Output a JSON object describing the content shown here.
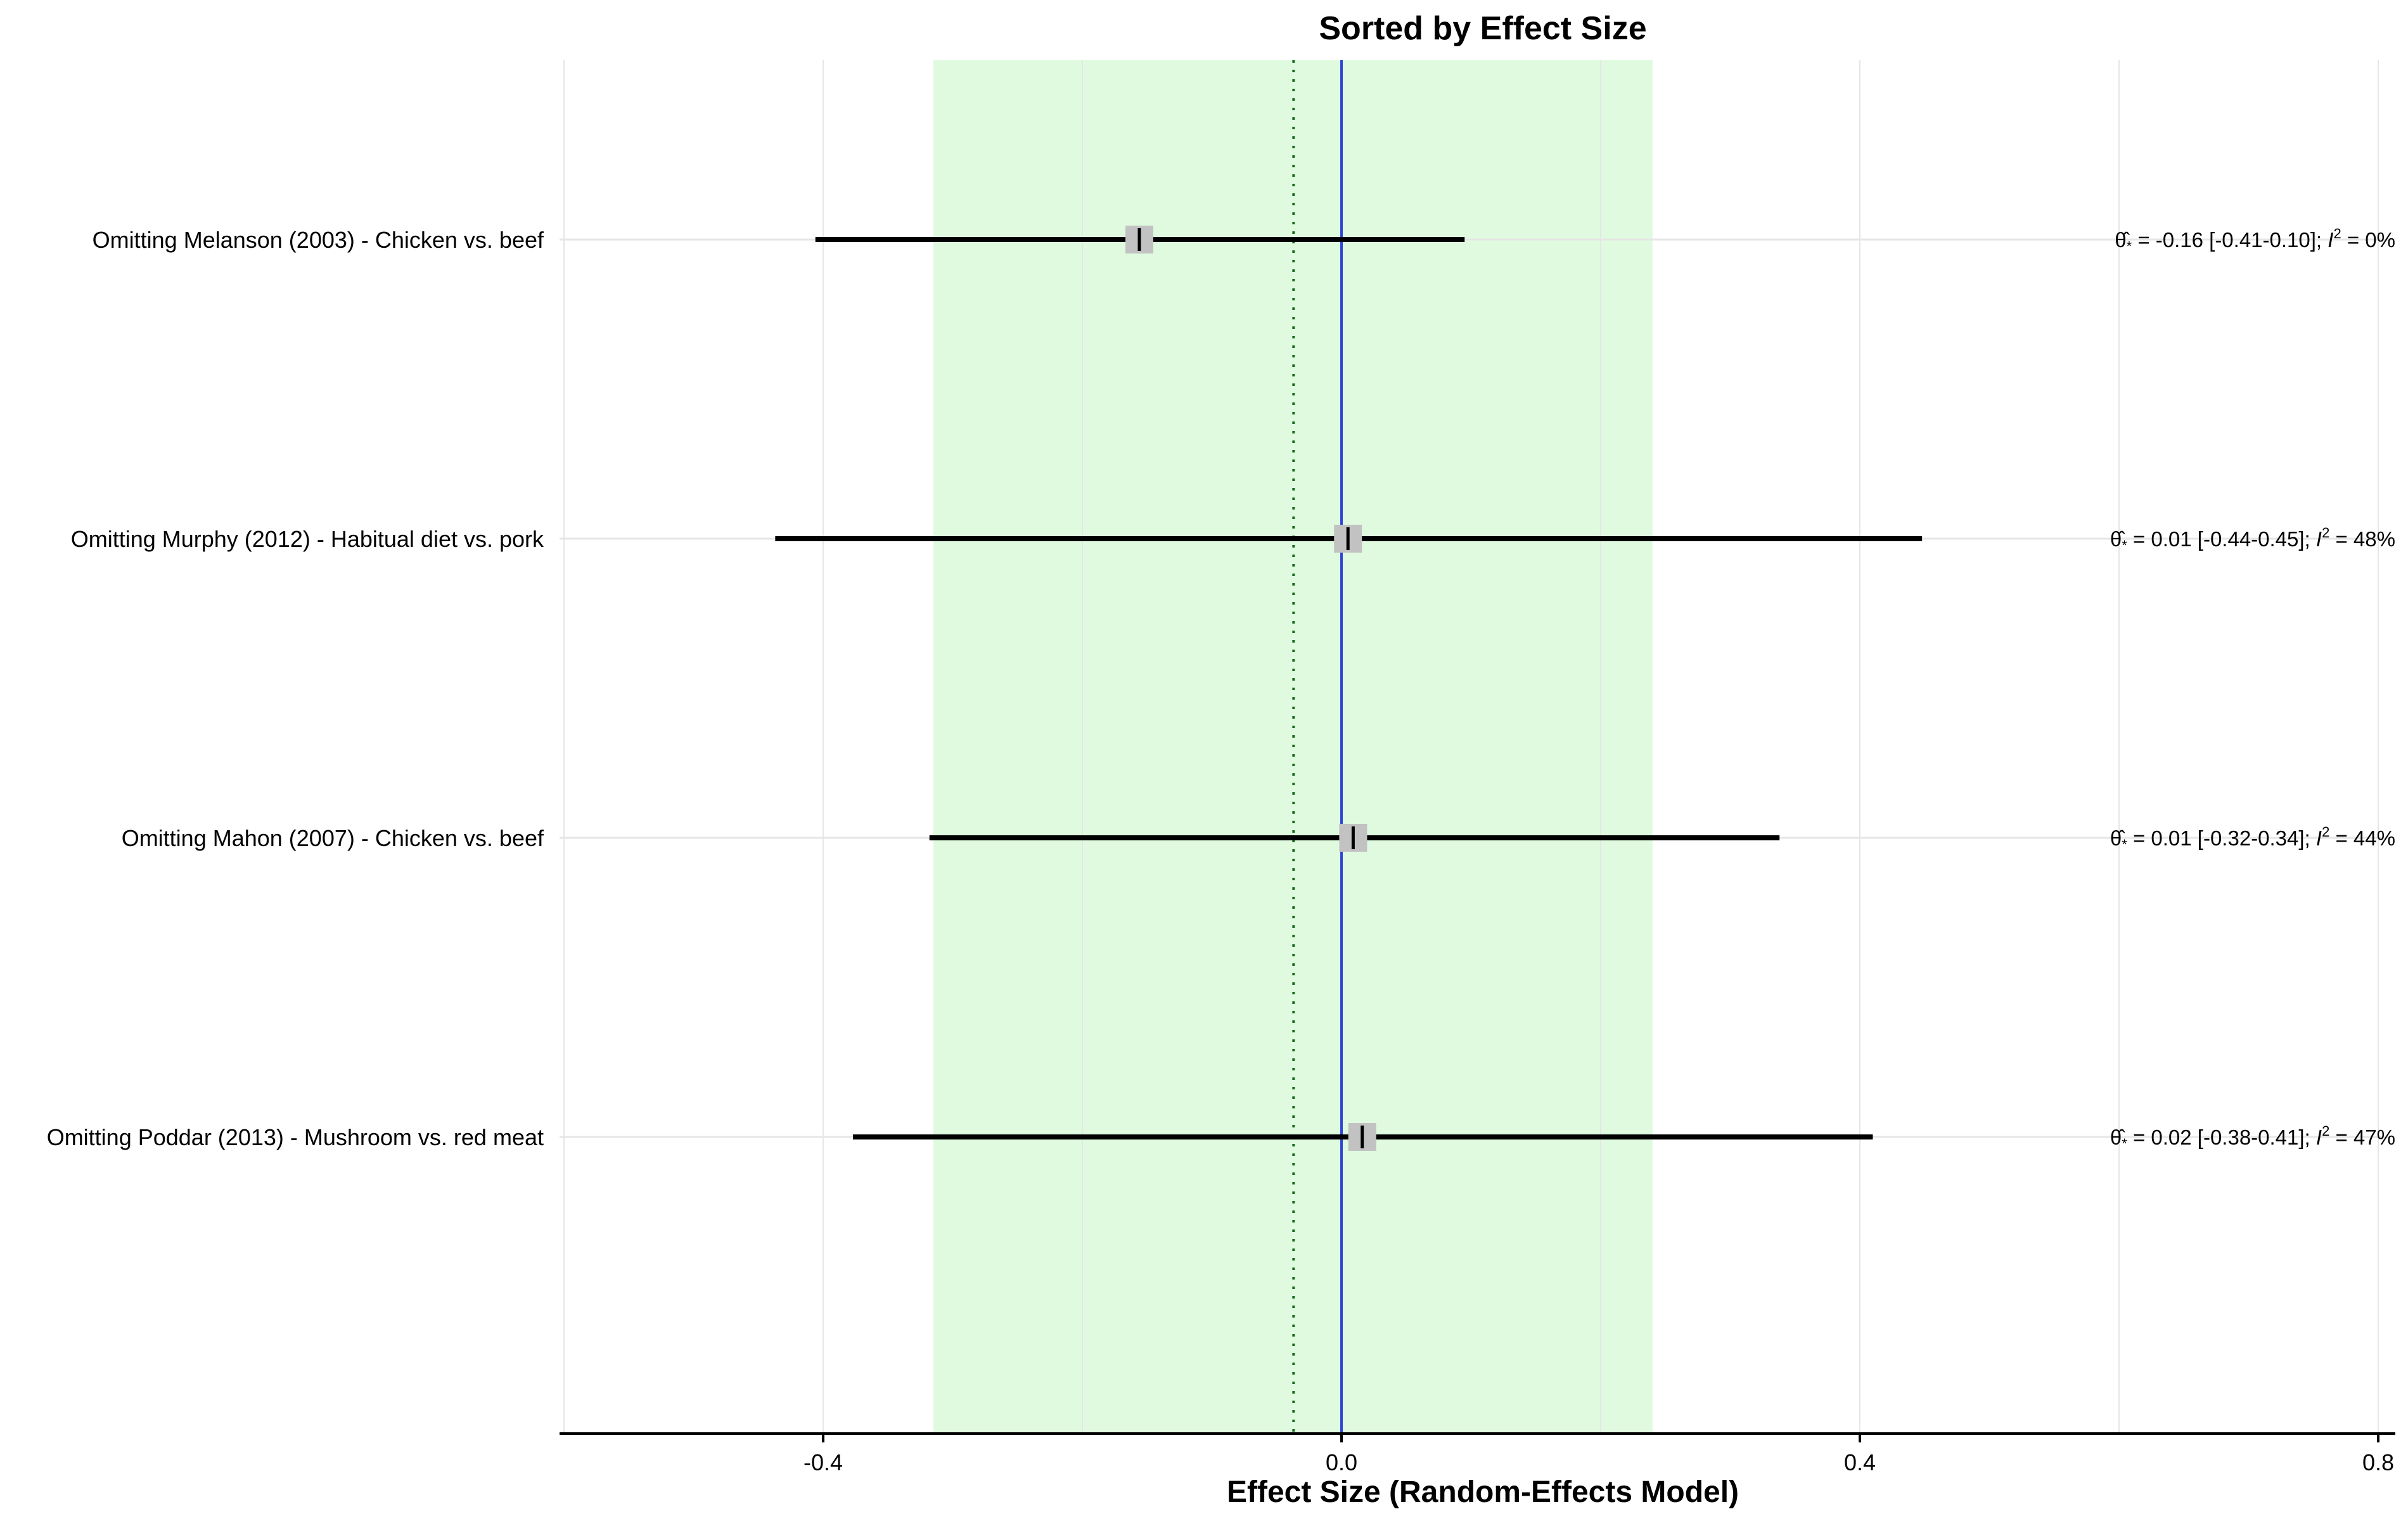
{
  "chart_data": {
    "type": "forest",
    "title": "Sorted by Effect Size",
    "xlabel": "Effect Size (Random-Effects Model)",
    "xlim": [
      -0.6,
      0.8
    ],
    "xticks": [
      -0.4,
      0.0,
      0.4,
      0.8
    ],
    "xtick_labels": [
      "-0.4",
      "0.0",
      "0.4",
      "0.8"
    ],
    "grid": true,
    "prediction_interval": [
      -0.315,
      0.24
    ],
    "reference_line": 0.0,
    "pooled_estimate_line": -0.037,
    "colors": {
      "prediction_band": "#e0fae0",
      "reference_line": "#2b45d8",
      "pooled_line": "#1a6b1a",
      "ci_line": "#000000",
      "marker": "#c2c2c2"
    },
    "studies": [
      {
        "label": "Omitting Melanson (2003) - Chicken vs. beef",
        "estimate": -0.156,
        "ci_low": -0.406,
        "ci_high": 0.095,
        "theta_text": "= -0.16 [-0.41-0.10];",
        "i2_text": "=  0%"
      },
      {
        "label": "Omitting Murphy (2012) - Habitual diet vs. pork",
        "estimate": 0.005,
        "ci_low": -0.437,
        "ci_high": 0.448,
        "theta_text": "=  0.01 [-0.44-0.45];",
        "i2_text": "= 48%"
      },
      {
        "label": "Omitting Mahon (2007) - Chicken vs. beef",
        "estimate": 0.009,
        "ci_low": -0.318,
        "ci_high": 0.338,
        "theta_text": "=  0.01 [-0.32-0.34];",
        "i2_text": "= 44%"
      },
      {
        "label": "Omitting Poddar (2013) - Mushroom vs. red meat",
        "estimate": 0.016,
        "ci_low": -0.377,
        "ci_high": 0.41,
        "theta_text": "=  0.02 [-0.38-0.41];",
        "i2_text": "= 47%"
      }
    ]
  }
}
